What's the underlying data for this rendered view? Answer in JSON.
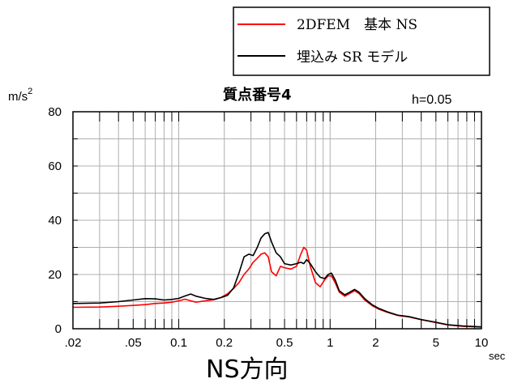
{
  "chart_data": {
    "type": "line",
    "title": "質点番号4",
    "y_unit": "m/s",
    "y_unit_superscript": "2",
    "damping_label": "h=0.05",
    "x_unit": "sec",
    "caption": "NS方向",
    "x_scale": "log",
    "xlim": [
      0.02,
      10
    ],
    "ylim": [
      0,
      80
    ],
    "x_ticks": [
      {
        "value": 0.02,
        "label": ".02"
      },
      {
        "value": 0.05,
        "label": ".05"
      },
      {
        "value": 0.1,
        "label": "0.1"
      },
      {
        "value": 0.2,
        "label": "0.2"
      },
      {
        "value": 0.5,
        "label": "0.5"
      },
      {
        "value": 1,
        "label": "1"
      },
      {
        "value": 2,
        "label": "2"
      },
      {
        "value": 5,
        "label": "5"
      },
      {
        "value": 10,
        "label": "10"
      }
    ],
    "y_ticks": [
      {
        "value": 0,
        "label": "0"
      },
      {
        "value": 20,
        "label": "20"
      },
      {
        "value": 40,
        "label": "40"
      },
      {
        "value": 60,
        "label": "60"
      },
      {
        "value": 80,
        "label": "80"
      }
    ],
    "grid": true,
    "legend_position": "top-right, above plot",
    "series": [
      {
        "name": "2DFEM　基本 NS",
        "color": "#ff0000",
        "points": [
          [
            0.02,
            7.9
          ],
          [
            0.03,
            8.0
          ],
          [
            0.04,
            8.3
          ],
          [
            0.05,
            8.6
          ],
          [
            0.06,
            8.9
          ],
          [
            0.07,
            9.3
          ],
          [
            0.08,
            9.5
          ],
          [
            0.09,
            9.8
          ],
          [
            0.1,
            10.3
          ],
          [
            0.11,
            10.9
          ],
          [
            0.12,
            10.3
          ],
          [
            0.13,
            9.8
          ],
          [
            0.15,
            10.3
          ],
          [
            0.17,
            10.7
          ],
          [
            0.19,
            11.5
          ],
          [
            0.21,
            12.9
          ],
          [
            0.23,
            14.8
          ],
          [
            0.25,
            17.0
          ],
          [
            0.27,
            20.0
          ],
          [
            0.29,
            22.0
          ],
          [
            0.31,
            24.5
          ],
          [
            0.33,
            26.0
          ],
          [
            0.35,
            27.5
          ],
          [
            0.37,
            28.0
          ],
          [
            0.39,
            26.5
          ],
          [
            0.41,
            21.0
          ],
          [
            0.44,
            19.5
          ],
          [
            0.47,
            23.0
          ],
          [
            0.5,
            22.5
          ],
          [
            0.55,
            22.0
          ],
          [
            0.6,
            23.0
          ],
          [
            0.64,
            27.5
          ],
          [
            0.67,
            30.0
          ],
          [
            0.7,
            29.0
          ],
          [
            0.74,
            23.0
          ],
          [
            0.8,
            17.0
          ],
          [
            0.86,
            15.5
          ],
          [
            0.92,
            18.0
          ],
          [
            0.97,
            19.5
          ],
          [
            1.02,
            19.5
          ],
          [
            1.08,
            17.0
          ],
          [
            1.15,
            13.5
          ],
          [
            1.25,
            12.0
          ],
          [
            1.35,
            13.0
          ],
          [
            1.45,
            14.0
          ],
          [
            1.55,
            13.0
          ],
          [
            1.7,
            10.5
          ],
          [
            1.9,
            8.5
          ],
          [
            2.1,
            7.2
          ],
          [
            2.4,
            6.0
          ],
          [
            2.8,
            4.9
          ],
          [
            3.3,
            4.4
          ],
          [
            4.0,
            3.3
          ],
          [
            5.0,
            2.3
          ],
          [
            6.0,
            1.4
          ],
          [
            7.5,
            0.9
          ],
          [
            10.0,
            0.6
          ]
        ]
      },
      {
        "name": "埋込み SR モデル",
        "color": "#000000",
        "points": [
          [
            0.02,
            9.3
          ],
          [
            0.03,
            9.5
          ],
          [
            0.04,
            10.0
          ],
          [
            0.05,
            10.6
          ],
          [
            0.06,
            11.1
          ],
          [
            0.07,
            11.0
          ],
          [
            0.08,
            10.6
          ],
          [
            0.09,
            10.8
          ],
          [
            0.1,
            11.2
          ],
          [
            0.11,
            12.1
          ],
          [
            0.12,
            12.8
          ],
          [
            0.13,
            12.0
          ],
          [
            0.15,
            11.2
          ],
          [
            0.17,
            10.8
          ],
          [
            0.19,
            11.5
          ],
          [
            0.21,
            12.3
          ],
          [
            0.23,
            15.0
          ],
          [
            0.25,
            20.5
          ],
          [
            0.27,
            26.5
          ],
          [
            0.29,
            27.5
          ],
          [
            0.31,
            27.0
          ],
          [
            0.33,
            30.0
          ],
          [
            0.35,
            33.5
          ],
          [
            0.37,
            35.0
          ],
          [
            0.39,
            35.5
          ],
          [
            0.41,
            32.0
          ],
          [
            0.44,
            28.0
          ],
          [
            0.47,
            26.5
          ],
          [
            0.5,
            24.0
          ],
          [
            0.55,
            23.5
          ],
          [
            0.6,
            24.0
          ],
          [
            0.64,
            24.5
          ],
          [
            0.67,
            24.0
          ],
          [
            0.7,
            25.5
          ],
          [
            0.74,
            24.0
          ],
          [
            0.8,
            21.0
          ],
          [
            0.86,
            19.0
          ],
          [
            0.92,
            18.5
          ],
          [
            0.97,
            20.0
          ],
          [
            1.02,
            20.5
          ],
          [
            1.08,
            18.0
          ],
          [
            1.15,
            14.0
          ],
          [
            1.25,
            12.5
          ],
          [
            1.35,
            13.5
          ],
          [
            1.45,
            14.5
          ],
          [
            1.55,
            13.5
          ],
          [
            1.7,
            11.0
          ],
          [
            1.9,
            8.8
          ],
          [
            2.1,
            7.5
          ],
          [
            2.4,
            6.2
          ],
          [
            2.8,
            5.0
          ],
          [
            3.3,
            4.5
          ],
          [
            4.0,
            3.4
          ],
          [
            5.0,
            2.4
          ],
          [
            6.0,
            1.5
          ],
          [
            7.5,
            1.0
          ],
          [
            10.0,
            0.7
          ]
        ]
      }
    ]
  }
}
